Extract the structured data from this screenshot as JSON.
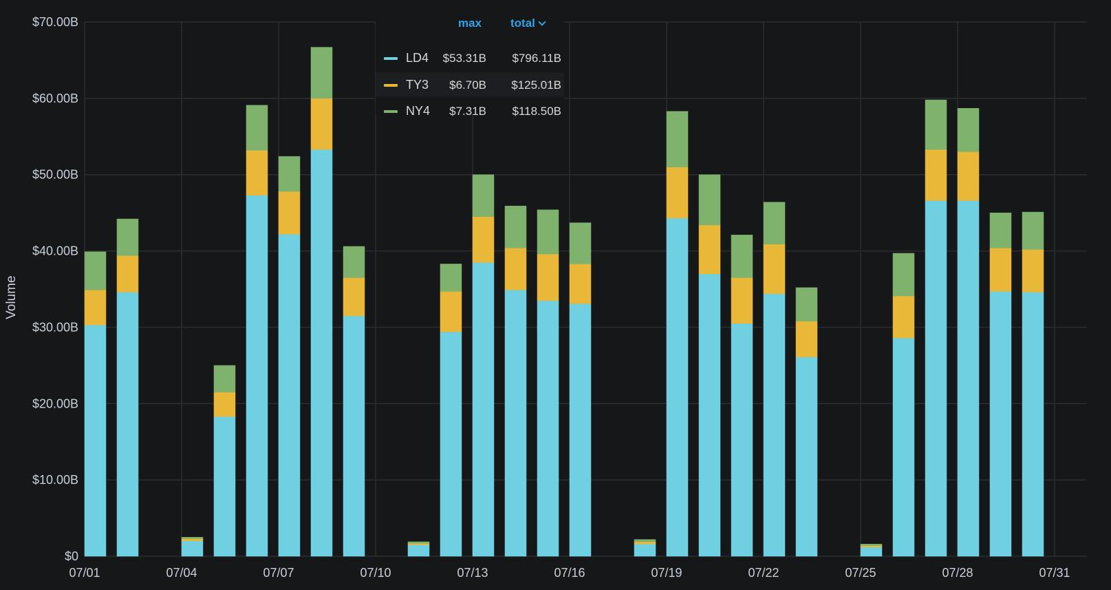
{
  "chart_data": {
    "type": "bar",
    "stacked": true,
    "ylabel": "Volume",
    "ylim": [
      0,
      70
    ],
    "y_unit": "billions USD",
    "yticks": [
      "$0",
      "$10.00B",
      "$20.00B",
      "$30.00B",
      "$40.00B",
      "$50.00B",
      "$60.00B",
      "$70.00B"
    ],
    "x_ticks": [
      "07/01",
      "07/04",
      "07/07",
      "07/10",
      "07/13",
      "07/16",
      "07/19",
      "07/22",
      "07/25",
      "07/28",
      "07/31"
    ],
    "categories": [
      "07/01",
      "07/02",
      "07/03",
      "07/04",
      "07/05",
      "07/06",
      "07/07",
      "07/08",
      "07/09",
      "07/10",
      "07/11",
      "07/12",
      "07/13",
      "07/14",
      "07/15",
      "07/16",
      "07/17",
      "07/18",
      "07/19",
      "07/20",
      "07/21",
      "07/22",
      "07/23",
      "07/24",
      "07/25",
      "07/26",
      "07/27",
      "07/28",
      "07/29",
      "07/30"
    ],
    "series": [
      {
        "name": "LD4",
        "color": "#6ed0e0",
        "values": [
          30.3,
          34.6,
          0,
          2.0,
          18.3,
          47.3,
          42.2,
          53.3,
          31.5,
          0,
          1.5,
          29.4,
          38.5,
          34.9,
          33.5,
          33.1,
          0,
          1.6,
          44.3,
          37.0,
          30.5,
          34.4,
          26.1,
          0,
          1.2,
          28.6,
          46.6,
          46.6,
          34.7,
          34.6
        ]
      },
      {
        "name": "TY3",
        "color": "#eab839",
        "values": [
          4.6,
          4.8,
          0,
          0.3,
          3.2,
          5.9,
          5.6,
          6.7,
          5.0,
          0,
          0.2,
          5.3,
          6.0,
          5.5,
          6.1,
          5.2,
          0,
          0.3,
          6.7,
          6.4,
          6.0,
          6.5,
          4.7,
          0,
          0.2,
          5.5,
          6.7,
          6.4,
          5.7,
          5.6
        ]
      },
      {
        "name": "NY4",
        "color": "#7eb26d",
        "values": [
          5.0,
          4.8,
          0,
          0.2,
          3.5,
          5.9,
          4.6,
          6.7,
          4.1,
          0,
          0.2,
          3.6,
          5.5,
          5.5,
          5.8,
          5.4,
          0,
          0.3,
          7.3,
          6.6,
          5.6,
          5.5,
          4.4,
          0,
          0.2,
          5.6,
          6.5,
          5.7,
          4.6,
          4.9
        ]
      }
    ],
    "legend": {
      "placement": "top-center",
      "columns": [
        "max",
        "total"
      ],
      "rows": [
        {
          "name": "LD4",
          "max": "$53.31B",
          "total": "$796.11B"
        },
        {
          "name": "TY3",
          "max": "$6.70B",
          "total": "$125.01B"
        },
        {
          "name": "NY4",
          "max": "$7.31B",
          "total": "$118.50B"
        }
      ]
    },
    "grid": true
  }
}
